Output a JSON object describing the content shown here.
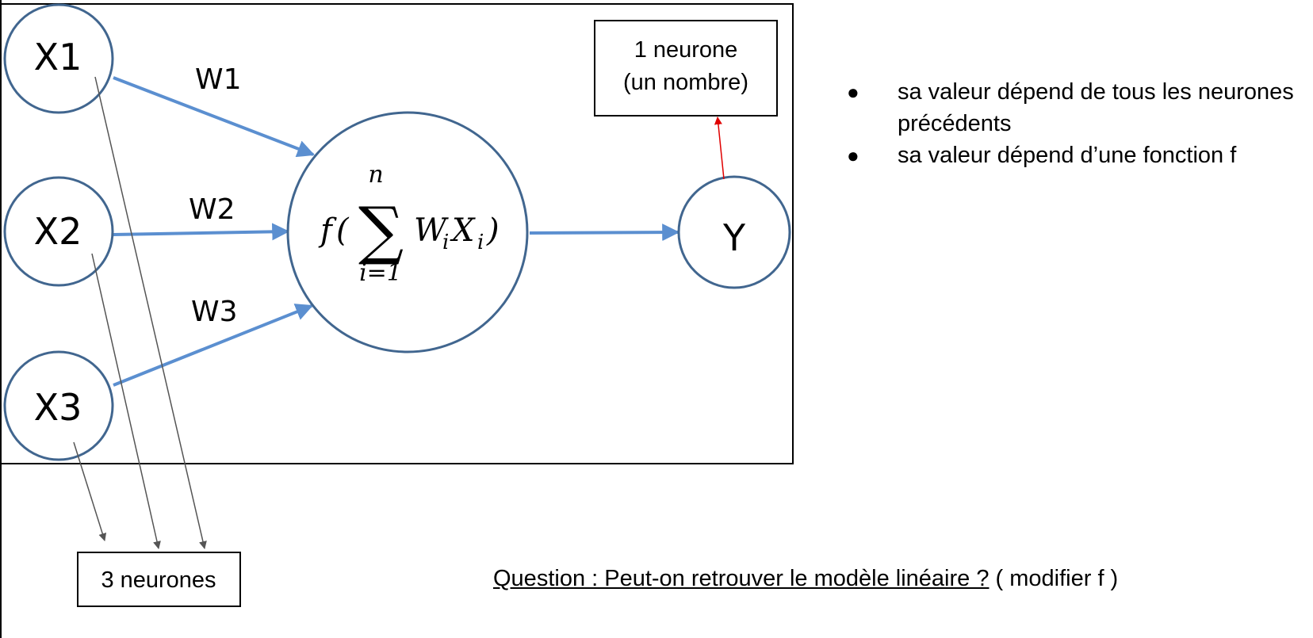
{
  "inputs": [
    {
      "label": "X1"
    },
    {
      "label": "X2"
    },
    {
      "label": "X3"
    }
  ],
  "weights": [
    {
      "label": "W1"
    },
    {
      "label": "W2"
    },
    {
      "label": "W3"
    }
  ],
  "neuron": {
    "f": "f",
    "paren_open": "(",
    "sum_symbol": "∑",
    "upper": "n",
    "lower": "i=1",
    "W": "W",
    "X": "X",
    "sub_i": "i",
    "paren_close": ")"
  },
  "output": {
    "label": "Y"
  },
  "output_box": {
    "line1": "1 neurone",
    "line2": "(un nombre)"
  },
  "inputs_box": {
    "label": "3 neurones"
  },
  "bullets": [
    {
      "dot": "●",
      "text": "sa valeur dépend de tous les neurones précédents"
    },
    {
      "dot": "●",
      "text": "sa valeur dépend d’une fonction f"
    }
  ],
  "question": {
    "main": "Question : Peut-on retrouver le modèle linéaire ?",
    "rest": " ( modifier f )"
  },
  "colors": {
    "node_stroke": "#41668f",
    "arrow_blue": "#5b8fd0",
    "arrow_gray": "#555555",
    "arrow_red": "#e00000"
  }
}
